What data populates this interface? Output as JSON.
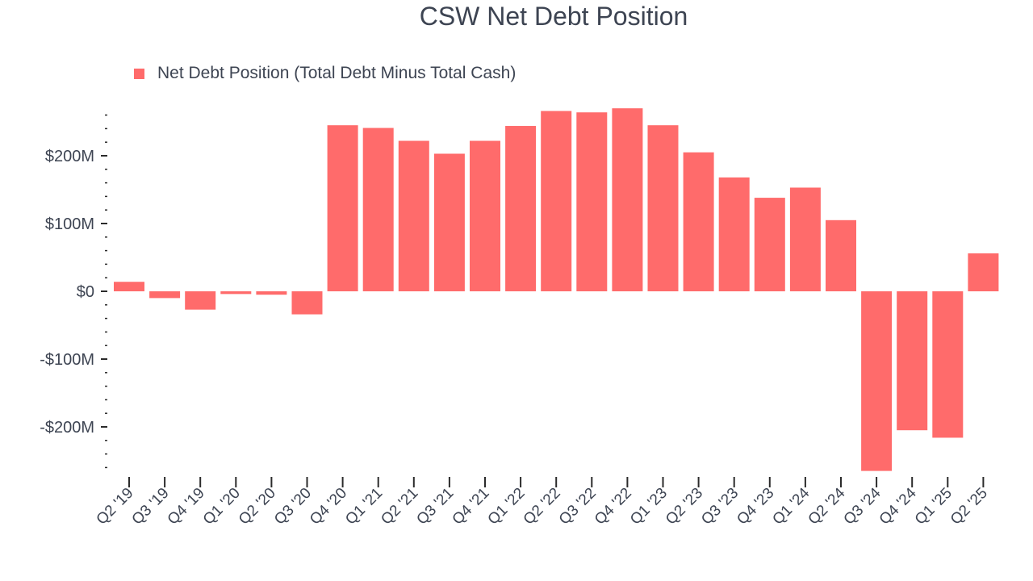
{
  "chart_data": {
    "type": "bar",
    "title": "CSW Net Debt Position",
    "xlabel": "",
    "ylabel": "",
    "ylim": [
      -265,
      270
    ],
    "y_ticks": [
      {
        "value": 200,
        "label": "$200M"
      },
      {
        "value": 100,
        "label": "$100M"
      },
      {
        "value": 0,
        "label": "$0"
      },
      {
        "value": -100,
        "label": "-$100M"
      },
      {
        "value": -200,
        "label": "-$200M"
      }
    ],
    "categories": [
      "Q2 '19",
      "Q3 '19",
      "Q4 '19",
      "Q1 '20",
      "Q2 '20",
      "Q3 '20",
      "Q4 '20",
      "Q1 '21",
      "Q2 '21",
      "Q3 '21",
      "Q4 '21",
      "Q1 '22",
      "Q2 '22",
      "Q3 '22",
      "Q4 '22",
      "Q1 '23",
      "Q2 '23",
      "Q3 '23",
      "Q4 '23",
      "Q1 '24",
      "Q2 '24",
      "Q3 '24",
      "Q4 '24",
      "Q1 '25",
      "Q2 '25"
    ],
    "series": [
      {
        "name": "Net Debt Position (Total Debt Minus Total Cash)",
        "color": "#ff6b6b",
        "values": [
          14,
          -10,
          -27,
          -4,
          -5,
          -34,
          245,
          241,
          222,
          203,
          222,
          244,
          266,
          264,
          270,
          245,
          205,
          168,
          138,
          153,
          105,
          -265,
          -205,
          -216,
          56
        ]
      }
    ],
    "legend": "top-left",
    "grid": false
  }
}
